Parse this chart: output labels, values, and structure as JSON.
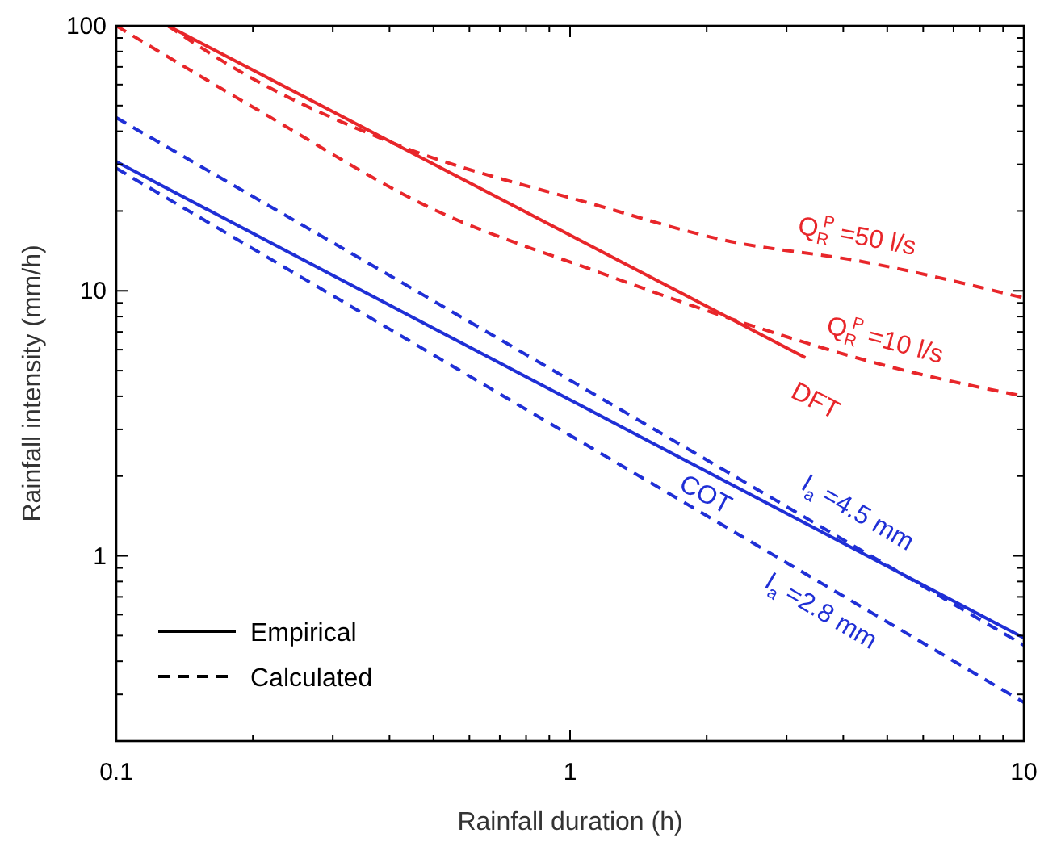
{
  "chart_data": {
    "type": "line",
    "xlabel": "Rainfall duration (h)",
    "ylabel": "Rainfall intensity (mm/h)",
    "log": "xy",
    "xlim": [
      0.1,
      10
    ],
    "ylim": [
      0.2,
      100
    ],
    "xticks": [
      0.1,
      {
        "value": 0.2,
        "label": null
      },
      {
        "value": 0.3,
        "label": null
      },
      {
        "value": 0.4,
        "label": null
      },
      {
        "value": 0.5,
        "label": null
      },
      {
        "value": 0.6,
        "label": null
      },
      {
        "value": 0.7,
        "label": null
      },
      {
        "value": 0.8,
        "label": null
      },
      {
        "value": 0.9,
        "label": null
      },
      1,
      {
        "value": 2,
        "label": null
      },
      {
        "value": 3,
        "label": null
      },
      {
        "value": 4,
        "label": null
      },
      {
        "value": 5,
        "label": null
      },
      {
        "value": 6,
        "label": null
      },
      {
        "value": 7,
        "label": null
      },
      {
        "value": 8,
        "label": null
      },
      {
        "value": 9,
        "label": null
      },
      10
    ],
    "yticks": [
      {
        "value": 0.3,
        "label": null
      },
      {
        "value": 0.4,
        "label": null
      },
      {
        "value": 0.5,
        "label": null
      },
      {
        "value": 0.6,
        "label": null
      },
      {
        "value": 0.7,
        "label": null
      },
      {
        "value": 0.8,
        "label": null
      },
      {
        "value": 0.9,
        "label": null
      },
      1,
      {
        "value": 2,
        "label": null
      },
      {
        "value": 3,
        "label": null
      },
      {
        "value": 4,
        "label": null
      },
      {
        "value": 5,
        "label": null
      },
      {
        "value": 6,
        "label": null
      },
      {
        "value": 7,
        "label": null
      },
      {
        "value": 8,
        "label": null
      },
      {
        "value": 9,
        "label": null
      },
      10,
      {
        "value": 20,
        "label": null
      },
      {
        "value": 30,
        "label": null
      },
      {
        "value": 40,
        "label": null
      },
      {
        "value": 50,
        "label": null
      },
      {
        "value": 60,
        "label": null
      },
      {
        "value": 70,
        "label": null
      },
      {
        "value": 80,
        "label": null
      },
      {
        "value": 90,
        "label": null
      },
      100
    ],
    "series": [
      {
        "name": "DFT",
        "color": "#e8262a",
        "line_style": "solid",
        "x": [
          0.13,
          3.3
        ],
        "values": [
          100,
          5.6
        ]
      },
      {
        "name": "Q$_{R}$$^{P}$ =50 l/s",
        "color": "#e8262a",
        "line_style": "dashed",
        "x": [
          0.13,
          0.18,
          0.4,
          1.15,
          2.2,
          4.4,
          10
        ],
        "values": [
          100,
          70,
          36.5,
          21,
          15.5,
          12.9,
          9.4
        ]
      },
      {
        "name": "Q$_{R}$$^{P}$ =10 l/s",
        "color": "#e8262a",
        "line_style": "dashed",
        "x": [
          0.1,
          0.21,
          0.5,
          1.15,
          2.45,
          5,
          10
        ],
        "values": [
          100,
          47,
          20.3,
          11.8,
          7.5,
          5.2,
          4.0
        ]
      },
      {
        "name": "COT",
        "color": "#1f2fd6",
        "line_style": "solid",
        "x": [
          0.1,
          10
        ],
        "values": [
          30.7,
          0.49
        ]
      },
      {
        "name": "I$_{a}$ =4.5 mm",
        "color": "#1f2fd6",
        "line_style": "dashed",
        "x": [
          0.1,
          1,
          4,
          10
        ],
        "values": [
          45,
          4.6,
          1.15,
          0.46
        ]
      },
      {
        "name": "I$_{a}$ =2.8 mm",
        "color": "#1f2fd6",
        "line_style": "dashed",
        "x": [
          0.1,
          10
        ],
        "values": [
          29,
          0.28
        ]
      }
    ],
    "annotations": [
      "Empirical",
      "Calculated"
    ]
  }
}
